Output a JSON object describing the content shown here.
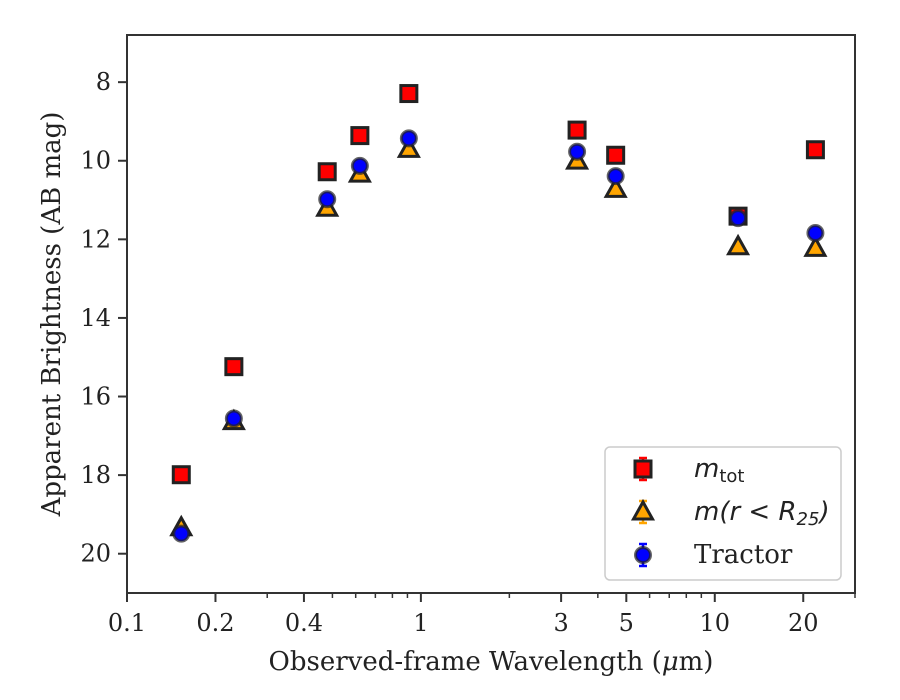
{
  "chart_data": {
    "type": "scatter",
    "xlabel_prefix": "Observed-frame Wavelength (",
    "xlabel_mu": "μ",
    "xlabel_suffix": "m)",
    "ylabel": "Apparent Brightness (AB mag)",
    "xscale": "log",
    "xlim": [
      0.1,
      30
    ],
    "ylim": [
      21,
      6.8
    ],
    "y_inverted": true,
    "grid": false,
    "legend_position": "lower right",
    "x_ticks": [
      0.1,
      0.2,
      0.4,
      1,
      3,
      5,
      10,
      20
    ],
    "x_tick_labels": [
      "0.1",
      "0.2",
      "0.4",
      "1",
      "3",
      "5",
      "10",
      "20"
    ],
    "y_ticks": [
      8,
      10,
      12,
      14,
      16,
      18,
      20
    ],
    "y_tick_labels": [
      "8",
      "10",
      "12",
      "14",
      "16",
      "18",
      "20"
    ],
    "series": [
      {
        "name": "m_tot",
        "legend_main": "m",
        "legend_sub": "tot",
        "marker": "square",
        "color": "#ff0000",
        "x": [
          0.153,
          0.231,
          0.48,
          0.62,
          0.91,
          3.4,
          4.6,
          12.0,
          22.0
        ],
        "y": [
          17.99,
          15.24,
          10.28,
          9.36,
          8.29,
          9.22,
          9.86,
          11.41,
          9.72
        ]
      },
      {
        "name": "m(r < R25)",
        "legend_main": "m(r < R",
        "legend_sub": "25",
        "legend_tail": ")",
        "marker": "triangle",
        "color": "#ffa500",
        "x": [
          0.153,
          0.231,
          0.48,
          0.62,
          0.91,
          3.4,
          4.6,
          12.0,
          22.0
        ],
        "y": [
          19.34,
          16.64,
          11.21,
          10.34,
          9.71,
          10.01,
          10.73,
          12.19,
          12.23
        ]
      },
      {
        "name": "Tractor",
        "legend_main": "Tractor",
        "marker": "circle",
        "color": "#0000ff",
        "x": [
          0.153,
          0.231,
          0.48,
          0.62,
          0.91,
          3.4,
          4.6,
          12.0,
          22.0
        ],
        "y": [
          19.49,
          16.56,
          10.98,
          10.13,
          9.43,
          9.77,
          10.39,
          11.46,
          11.84
        ]
      }
    ]
  }
}
